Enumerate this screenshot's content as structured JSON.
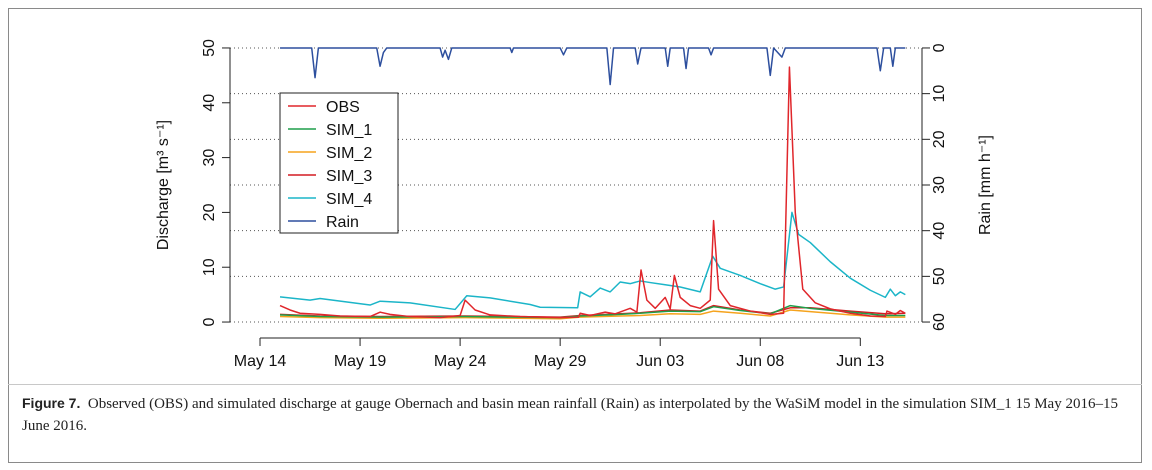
{
  "chart_data": {
    "type": "line",
    "y_label": "Discharge [m³ s⁻¹]",
    "y2_label": "Rain [mm h⁻¹]",
    "caption_label": "Figure 7.",
    "caption": "Observed (OBS) and simulated discharge at gauge Obernach and basin mean rainfall (Rain) as interpolated by the WaSiM model in the simulation SIM_1 15 May 2016–15 June 2016.",
    "xlim": [
      "2016-05-12T12:00",
      "2016-06-16T02:00"
    ],
    "xticks": [
      {
        "value": "2016-05-14T00:00",
        "label": "May 14"
      },
      {
        "value": "2016-05-19T00:00",
        "label": "May 19"
      },
      {
        "value": "2016-05-24T00:00",
        "label": "May 24"
      },
      {
        "value": "2016-05-29T00:00",
        "label": "May 29"
      },
      {
        "value": "2016-06-03T00:00",
        "label": "Jun 03"
      },
      {
        "value": "2016-06-08T00:00",
        "label": "Jun 08"
      },
      {
        "value": "2016-06-13T00:00",
        "label": "Jun 13"
      }
    ],
    "ylim": [
      -2,
      52
    ],
    "yticks": [
      0,
      10,
      20,
      30,
      40,
      50
    ],
    "y2lim": [
      62.4,
      -2.4
    ],
    "y2ticks": [
      0,
      10,
      20,
      30,
      40,
      50,
      60
    ],
    "grid": "y2",
    "legend": "top-left",
    "series": [
      {
        "name": "OBS",
        "color": "#e0262b",
        "x": [
          "2016-05-15T00:00",
          "2016-05-15T12:00",
          "2016-05-16T00:00",
          "2016-05-17T00:00",
          "2016-05-18T00:00",
          "2016-05-19T12:00",
          "2016-05-20T00:00",
          "2016-05-20T12:00",
          "2016-05-21T12:00",
          "2016-05-23T00:00",
          "2016-05-24T00:00",
          "2016-05-24T06:00",
          "2016-05-24T18:00",
          "2016-05-25T12:00",
          "2016-05-27T00:00",
          "2016-05-29T00:00",
          "2016-05-29T22:00",
          "2016-05-30T00:00",
          "2016-05-30T12:00",
          "2016-05-31T06:00",
          "2016-05-31T18:00",
          "2016-06-01T12:00",
          "2016-06-01T20:00",
          "2016-06-02T01:00",
          "2016-06-02T08:00",
          "2016-06-02T18:00",
          "2016-06-03T06:00",
          "2016-06-03T12:00",
          "2016-06-03T17:00",
          "2016-06-04T00:00",
          "2016-06-04T12:00",
          "2016-06-05T00:00",
          "2016-06-05T12:00",
          "2016-06-05T16:00",
          "2016-06-05T22:00",
          "2016-06-06T12:00",
          "2016-06-07T12:00",
          "2016-06-08T12:00",
          "2016-06-09T04:00",
          "2016-06-09T11:00",
          "2016-06-09T18:00",
          "2016-06-10T03:00",
          "2016-06-10T18:00",
          "2016-06-11T12:00",
          "2016-06-12T12:00",
          "2016-06-13T12:00",
          "2016-06-14T06:00",
          "2016-06-14T08:00",
          "2016-06-14T18:00",
          "2016-06-15T00:00",
          "2016-06-15T06:00"
        ],
        "values": [
          3.0,
          2.2,
          1.6,
          1.4,
          1.1,
          1.0,
          1.8,
          1.4,
          1.0,
          0.8,
          1.2,
          4.0,
          2.2,
          1.3,
          1.0,
          0.8,
          0.9,
          1.6,
          1.2,
          1.8,
          1.5,
          2.5,
          1.8,
          9.5,
          4.0,
          2.5,
          4.5,
          2.4,
          8.5,
          4.5,
          3.0,
          2.5,
          4.0,
          18.5,
          6.0,
          3.0,
          2.0,
          1.4,
          1.6,
          46.5,
          20.0,
          6.0,
          3.5,
          2.4,
          1.6,
          1.1,
          1.0,
          2.0,
          1.4,
          2.1,
          1.6
        ]
      },
      {
        "name": "SIM_1",
        "color": "#1f9e4a",
        "x": [
          "2016-05-15T00:00",
          "2016-05-17T00:00",
          "2016-05-20T00:00",
          "2016-05-24T06:00",
          "2016-05-29T00:00",
          "2016-05-30T00:00",
          "2016-06-01T00:00",
          "2016-06-02T00:00",
          "2016-06-03T12:00",
          "2016-06-05T00:00",
          "2016-06-05T16:00",
          "2016-06-07T00:00",
          "2016-06-08T12:00",
          "2016-06-09T12:00",
          "2016-06-10T12:00",
          "2016-06-12T12:00",
          "2016-06-14T06:00",
          "2016-06-15T06:00"
        ],
        "values": [
          1.3,
          1.0,
          0.9,
          1.0,
          0.8,
          1.1,
          1.4,
          1.6,
          2.0,
          1.9,
          2.8,
          2.1,
          1.5,
          3.0,
          2.5,
          1.8,
          1.2,
          1.2
        ]
      },
      {
        "name": "SIM_2",
        "color": "#f5a31d",
        "x": [
          "2016-05-15T00:00",
          "2016-05-17T00:00",
          "2016-05-20T00:00",
          "2016-05-24T06:00",
          "2016-05-29T00:00",
          "2016-05-30T00:00",
          "2016-06-01T00:00",
          "2016-06-02T00:00",
          "2016-06-03T12:00",
          "2016-06-05T00:00",
          "2016-06-05T16:00",
          "2016-06-07T00:00",
          "2016-06-08T12:00",
          "2016-06-09T12:00",
          "2016-06-10T12:00",
          "2016-06-12T12:00",
          "2016-06-14T06:00",
          "2016-06-15T06:00"
        ],
        "values": [
          1.0,
          0.8,
          0.7,
          0.8,
          0.6,
          0.9,
          1.1,
          1.2,
          1.5,
          1.4,
          2.0,
          1.6,
          1.1,
          2.2,
          1.9,
          1.3,
          0.9,
          0.9
        ]
      },
      {
        "name": "SIM_3",
        "color": "#d41c22",
        "x": [
          "2016-05-15T00:00",
          "2016-05-17T00:00",
          "2016-05-20T00:00",
          "2016-05-24T06:00",
          "2016-05-29T00:00",
          "2016-05-30T00:00",
          "2016-06-01T00:00",
          "2016-06-02T00:00",
          "2016-06-03T12:00",
          "2016-06-05T00:00",
          "2016-06-05T16:00",
          "2016-06-07T00:00",
          "2016-06-08T12:00",
          "2016-06-09T12:00",
          "2016-06-10T12:00",
          "2016-06-12T12:00",
          "2016-06-14T06:00",
          "2016-06-15T06:00"
        ],
        "values": [
          1.4,
          1.1,
          1.0,
          1.1,
          0.9,
          1.2,
          1.5,
          1.7,
          2.2,
          2.0,
          3.0,
          2.2,
          1.6,
          2.6,
          2.6,
          2.0,
          1.5,
          1.6
        ]
      },
      {
        "name": "SIM_4",
        "color": "#1bb5c8",
        "x": [
          "2016-05-15T00:00",
          "2016-05-16T12:00",
          "2016-05-17T00:00",
          "2016-05-19T12:00",
          "2016-05-20T00:00",
          "2016-05-21T12:00",
          "2016-05-23T18:00",
          "2016-05-24T08:00",
          "2016-05-25T12:00",
          "2016-05-27T12:00",
          "2016-05-28T00:00",
          "2016-05-29T21:00",
          "2016-05-30T00:00",
          "2016-05-30T12:00",
          "2016-05-31T00:00",
          "2016-05-31T12:00",
          "2016-06-01T00:00",
          "2016-06-01T12:00",
          "2016-06-02T00:00",
          "2016-06-02T12:00",
          "2016-06-03T06:00",
          "2016-06-04T00:00",
          "2016-06-05T00:00",
          "2016-06-05T15:00",
          "2016-06-06T00:00",
          "2016-06-07T00:00",
          "2016-06-08T00:00",
          "2016-06-08T18:00",
          "2016-06-09T04:00",
          "2016-06-09T14:00",
          "2016-06-09T22:00",
          "2016-06-10T12:00",
          "2016-06-11T12:00",
          "2016-06-12T12:00",
          "2016-06-13T12:00",
          "2016-06-14T06:00",
          "2016-06-14T12:00",
          "2016-06-14T18:00",
          "2016-06-15T00:00",
          "2016-06-15T06:00"
        ],
        "values": [
          4.6,
          4.0,
          4.3,
          3.1,
          3.8,
          3.5,
          2.3,
          4.8,
          4.4,
          3.2,
          2.7,
          2.6,
          5.5,
          4.6,
          6.2,
          5.5,
          7.3,
          7.0,
          7.5,
          7.2,
          6.8,
          6.4,
          5.5,
          12.0,
          9.8,
          8.5,
          7.0,
          6.0,
          6.4,
          20.0,
          16.0,
          14.5,
          11.0,
          8.0,
          5.8,
          4.5,
          6.0,
          4.8,
          5.5,
          5.0
        ]
      },
      {
        "name": "Rain",
        "color": "#2d4f9e",
        "axis": "y2",
        "x": [
          "2016-05-15T00:00",
          "2016-05-16T14:00",
          "2016-05-16T18:00",
          "2016-05-16T22:00",
          "2016-05-19T20:00",
          "2016-05-20T00:00",
          "2016-05-20T04:00",
          "2016-05-20T08:00",
          "2016-05-23T00:00",
          "2016-05-23T03:00",
          "2016-05-23T06:00",
          "2016-05-23T10:00",
          "2016-05-23T14:00",
          "2016-05-26T12:00",
          "2016-05-26T14:00",
          "2016-05-26T16:00",
          "2016-05-29T00:00",
          "2016-05-29T04:00",
          "2016-05-29T08:00",
          "2016-05-31T08:00",
          "2016-05-31T12:00",
          "2016-05-31T16:00",
          "2016-06-01T18:00",
          "2016-06-01T21:00",
          "2016-06-02T01:00",
          "2016-06-03T06:00",
          "2016-06-03T09:00",
          "2016-06-03T12:00",
          "2016-06-04T04:00",
          "2016-06-04T07:00",
          "2016-06-04T10:00",
          "2016-06-05T10:00",
          "2016-06-05T13:00",
          "2016-06-05T16:00",
          "2016-06-08T08:00",
          "2016-06-08T12:00",
          "2016-06-08T16:00",
          "2016-06-09T02:00",
          "2016-06-09T06:00",
          "2016-06-13T20:00",
          "2016-06-14T00:00",
          "2016-06-14T04:00",
          "2016-06-14T12:00",
          "2016-06-14T15:00",
          "2016-06-14T18:00",
          "2016-06-15T06:00"
        ],
        "values": [
          0,
          0,
          6.5,
          0,
          0,
          4,
          1,
          0,
          0,
          2,
          0.5,
          2.5,
          0,
          0,
          1,
          0,
          0,
          1.5,
          0,
          0,
          8,
          0,
          0,
          3.5,
          0,
          0,
          4,
          0,
          0,
          4.5,
          0,
          0,
          1.5,
          0,
          0,
          6,
          0,
          2,
          0,
          0,
          5,
          0,
          0,
          4,
          0,
          0
        ]
      }
    ]
  }
}
